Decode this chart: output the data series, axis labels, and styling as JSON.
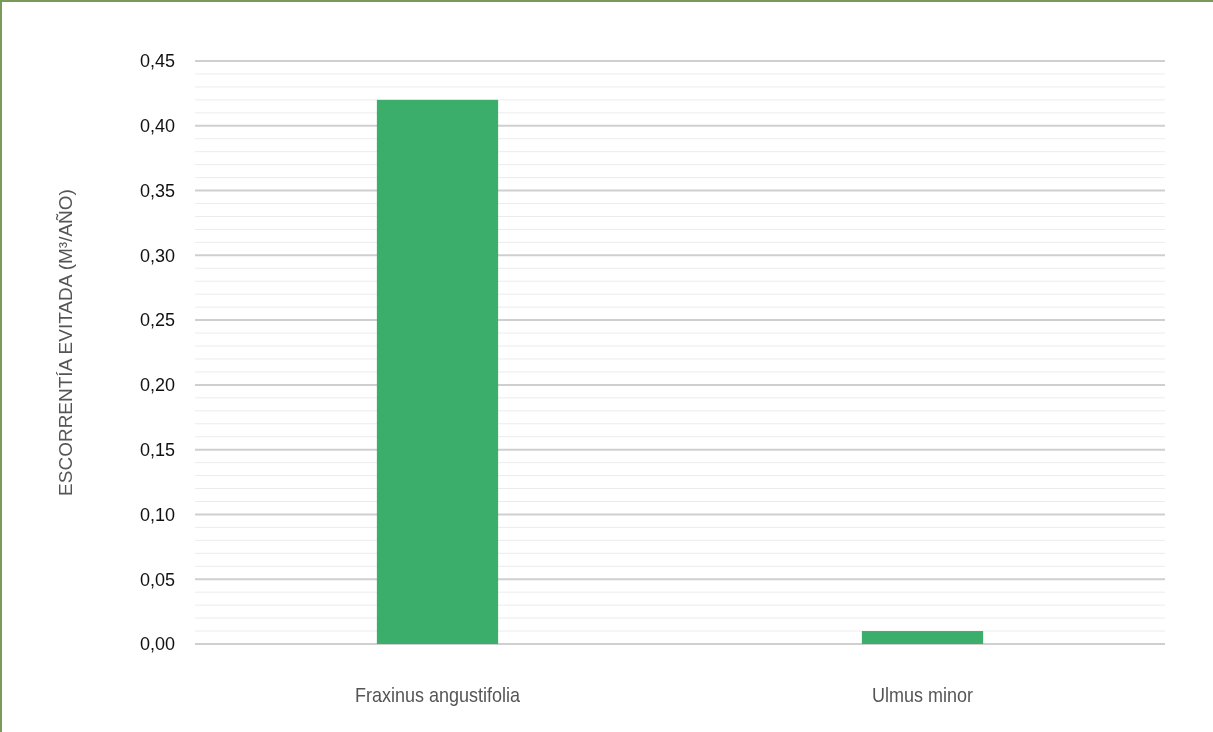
{
  "chart_data": {
    "type": "bar",
    "ylabel": "ESCORRENTÍA EVITADA (M³/AÑO)",
    "categories": [
      "Fraxinus angustifolia",
      "Ulmus minor"
    ],
    "values": [
      0.42,
      0.01
    ],
    "color": "#3aae6a",
    "ylim": [
      0,
      0.45
    ],
    "yticks": [
      {
        "value": 0,
        "label": "0,00"
      },
      {
        "value": 0.01,
        "label": null
      },
      {
        "value": 0.02,
        "label": null
      },
      {
        "value": 0.03,
        "label": null
      },
      {
        "value": 0.04,
        "label": null
      },
      {
        "value": 0.05,
        "label": "0,05"
      },
      {
        "value": 0.06,
        "label": null
      },
      {
        "value": 0.07,
        "label": null
      },
      {
        "value": 0.08,
        "label": null
      },
      {
        "value": 0.09,
        "label": null
      },
      {
        "value": 0.1,
        "label": "0,10"
      },
      {
        "value": 0.11,
        "label": null
      },
      {
        "value": 0.12,
        "label": null
      },
      {
        "value": 0.13,
        "label": null
      },
      {
        "value": 0.14,
        "label": null
      },
      {
        "value": 0.15,
        "label": "0,15"
      },
      {
        "value": 0.16,
        "label": null
      },
      {
        "value": 0.17,
        "label": null
      },
      {
        "value": 0.18,
        "label": null
      },
      {
        "value": 0.19,
        "label": null
      },
      {
        "value": 0.2,
        "label": "0,20"
      },
      {
        "value": 0.21,
        "label": null
      },
      {
        "value": 0.22,
        "label": null
      },
      {
        "value": 0.23,
        "label": null
      },
      {
        "value": 0.24,
        "label": null
      },
      {
        "value": 0.25,
        "label": "0,25"
      },
      {
        "value": 0.26,
        "label": null
      },
      {
        "value": 0.27,
        "label": null
      },
      {
        "value": 0.28,
        "label": null
      },
      {
        "value": 0.29,
        "label": null
      },
      {
        "value": 0.3,
        "label": "0,30"
      },
      {
        "value": 0.31,
        "label": null
      },
      {
        "value": 0.32,
        "label": null
      },
      {
        "value": 0.33,
        "label": null
      },
      {
        "value": 0.34,
        "label": null
      },
      {
        "value": 0.35,
        "label": "0,35"
      },
      {
        "value": 0.36,
        "label": null
      },
      {
        "value": 0.37,
        "label": null
      },
      {
        "value": 0.38,
        "label": null
      },
      {
        "value": 0.39,
        "label": null
      },
      {
        "value": 0.4,
        "label": "0,40"
      },
      {
        "value": 0.41,
        "label": null
      },
      {
        "value": 0.42,
        "label": null
      },
      {
        "value": 0.43,
        "label": null
      },
      {
        "value": 0.44,
        "label": null
      },
      {
        "value": 0.45,
        "label": "0,45"
      }
    ],
    "grid": "y"
  }
}
